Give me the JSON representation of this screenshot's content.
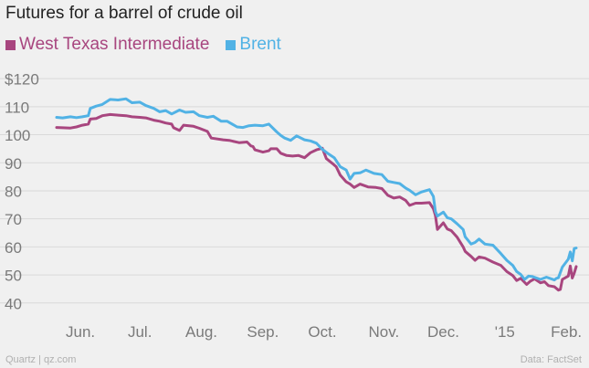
{
  "header": {
    "title": "Futures for a barrel of crude oil"
  },
  "footer": {
    "source_left": "Quartz | qz.com",
    "source_right": "Data: FactSet"
  },
  "chart_data": {
    "type": "line",
    "title": "Futures for a barrel of crude oil",
    "xlabel": "",
    "ylabel": "",
    "ylim": [
      37,
      122
    ],
    "y_ticks": [
      40,
      50,
      60,
      70,
      80,
      90,
      100,
      110,
      120
    ],
    "y_tick_labels": [
      "40",
      "50",
      "60",
      "70",
      "80",
      "90",
      "100",
      "110",
      "$120"
    ],
    "x_range": [
      "2014-05-20",
      "2015-02-06"
    ],
    "x_ticks": [
      {
        "date": "2014-06-01",
        "label": "Jun."
      },
      {
        "date": "2014-07-01",
        "label": "Jul."
      },
      {
        "date": "2014-08-01",
        "label": "Aug."
      },
      {
        "date": "2014-09-01",
        "label": "Sep."
      },
      {
        "date": "2014-10-01",
        "label": "Oct."
      },
      {
        "date": "2014-11-01",
        "label": "Nov."
      },
      {
        "date": "2014-12-01",
        "label": "Dec."
      },
      {
        "date": "2015-01-01",
        "label": "'15"
      },
      {
        "date": "2015-02-01",
        "label": "Feb."
      }
    ],
    "grid": true,
    "legend_position": "top-left",
    "series": [
      {
        "name": "West Texas Intermediate",
        "color": "#a8467f",
        "points": [
          [
            "2014-05-20",
            102.6
          ],
          [
            "2014-05-23",
            102.5
          ],
          [
            "2014-05-27",
            102.4
          ],
          [
            "2014-05-30",
            102.8
          ],
          [
            "2014-06-02",
            103.4
          ],
          [
            "2014-06-05",
            103.8
          ],
          [
            "2014-06-06",
            105.6
          ],
          [
            "2014-06-09",
            105.8
          ],
          [
            "2014-06-12",
            106.8
          ],
          [
            "2014-06-16",
            107.2
          ],
          [
            "2014-06-20",
            107.0
          ],
          [
            "2014-06-24",
            106.8
          ],
          [
            "2014-06-27",
            106.4
          ],
          [
            "2014-07-01",
            106.2
          ],
          [
            "2014-07-04",
            106.0
          ],
          [
            "2014-07-08",
            105.2
          ],
          [
            "2014-07-11",
            104.8
          ],
          [
            "2014-07-14",
            104.2
          ],
          [
            "2014-07-17",
            103.8
          ],
          [
            "2014-07-18",
            102.5
          ],
          [
            "2014-07-21",
            101.5
          ],
          [
            "2014-07-23",
            103.4
          ],
          [
            "2014-07-28",
            103.0
          ],
          [
            "2014-07-31",
            102.3
          ],
          [
            "2014-08-04",
            101.2
          ],
          [
            "2014-08-06",
            98.8
          ],
          [
            "2014-08-12",
            98.2
          ],
          [
            "2014-08-15",
            98.0
          ],
          [
            "2014-08-20",
            97.2
          ],
          [
            "2014-08-24",
            97.4
          ],
          [
            "2014-08-26",
            96.0
          ],
          [
            "2014-08-27",
            95.8
          ],
          [
            "2014-08-28",
            94.6
          ],
          [
            "2014-09-01",
            93.8
          ],
          [
            "2014-09-04",
            94.3
          ],
          [
            "2014-09-05",
            95.0
          ],
          [
            "2014-09-08",
            95.0
          ],
          [
            "2014-09-10",
            93.4
          ],
          [
            "2014-09-13",
            92.6
          ],
          [
            "2014-09-16",
            92.4
          ],
          [
            "2014-09-19",
            92.6
          ],
          [
            "2014-09-22",
            91.8
          ],
          [
            "2014-09-25",
            93.6
          ],
          [
            "2014-09-28",
            94.6
          ],
          [
            "2014-10-01",
            95.2
          ],
          [
            "2014-10-03",
            91.5
          ],
          [
            "2014-10-06",
            89.8
          ],
          [
            "2014-10-08",
            88.6
          ],
          [
            "2014-10-10",
            85.6
          ],
          [
            "2014-10-13",
            83.2
          ],
          [
            "2014-10-15",
            82.4
          ],
          [
            "2014-10-17",
            81.2
          ],
          [
            "2014-10-20",
            82.4
          ],
          [
            "2014-10-24",
            81.4
          ],
          [
            "2014-10-28",
            81.2
          ],
          [
            "2014-10-31",
            80.8
          ],
          [
            "2014-11-03",
            78.4
          ],
          [
            "2014-11-06",
            77.4
          ],
          [
            "2014-11-09",
            77.8
          ],
          [
            "2014-11-12",
            76.6
          ],
          [
            "2014-11-14",
            74.8
          ],
          [
            "2014-11-17",
            75.6
          ],
          [
            "2014-11-20",
            75.6
          ],
          [
            "2014-11-24",
            75.8
          ],
          [
            "2014-11-26",
            73.6
          ],
          [
            "2014-11-27",
            71.2
          ],
          [
            "2014-11-28",
            66.2
          ],
          [
            "2014-12-01",
            68.6
          ],
          [
            "2014-12-03",
            66.4
          ],
          [
            "2014-12-05",
            65.8
          ],
          [
            "2014-12-08",
            63.4
          ],
          [
            "2014-12-11",
            60.0
          ],
          [
            "2014-12-12",
            58.4
          ],
          [
            "2014-12-15",
            56.6
          ],
          [
            "2014-12-17",
            55.2
          ],
          [
            "2014-12-19",
            56.4
          ],
          [
            "2014-12-22",
            56.0
          ],
          [
            "2014-12-26",
            54.6
          ],
          [
            "2014-12-30",
            53.4
          ],
          [
            "2015-01-02",
            51.2
          ],
          [
            "2015-01-05",
            49.8
          ],
          [
            "2015-01-07",
            48.0
          ],
          [
            "2015-01-09",
            48.8
          ],
          [
            "2015-01-12",
            46.6
          ],
          [
            "2015-01-14",
            47.8
          ],
          [
            "2015-01-16",
            48.6
          ],
          [
            "2015-01-19",
            47.2
          ],
          [
            "2015-01-21",
            47.6
          ],
          [
            "2015-01-23",
            46.2
          ],
          [
            "2015-01-26",
            45.8
          ],
          [
            "2015-01-28",
            44.6
          ],
          [
            "2015-01-29",
            44.8
          ],
          [
            "2015-01-30",
            48.4
          ],
          [
            "2015-02-02",
            49.6
          ],
          [
            "2015-02-03",
            53.2
          ],
          [
            "2015-02-04",
            48.9
          ],
          [
            "2015-02-05",
            50.6
          ],
          [
            "2015-02-06",
            53.0
          ]
        ]
      },
      {
        "name": "Brent",
        "color": "#51b2e5",
        "points": [
          [
            "2014-05-20",
            106.2
          ],
          [
            "2014-05-23",
            106.0
          ],
          [
            "2014-05-27",
            106.4
          ],
          [
            "2014-05-30",
            106.1
          ],
          [
            "2014-06-02",
            106.4
          ],
          [
            "2014-06-05",
            106.8
          ],
          [
            "2014-06-06",
            109.4
          ],
          [
            "2014-06-09",
            110.2
          ],
          [
            "2014-06-12",
            110.8
          ],
          [
            "2014-06-16",
            112.6
          ],
          [
            "2014-06-20",
            112.4
          ],
          [
            "2014-06-24",
            112.8
          ],
          [
            "2014-06-27",
            111.4
          ],
          [
            "2014-07-01",
            111.6
          ],
          [
            "2014-07-04",
            110.4
          ],
          [
            "2014-07-08",
            109.4
          ],
          [
            "2014-07-11",
            108.2
          ],
          [
            "2014-07-14",
            108.6
          ],
          [
            "2014-07-17",
            107.4
          ],
          [
            "2014-07-21",
            108.8
          ],
          [
            "2014-07-24",
            108.0
          ],
          [
            "2014-07-28",
            108.2
          ],
          [
            "2014-07-31",
            106.8
          ],
          [
            "2014-08-04",
            106.2
          ],
          [
            "2014-08-07",
            106.6
          ],
          [
            "2014-08-11",
            104.8
          ],
          [
            "2014-08-14",
            104.8
          ],
          [
            "2014-08-19",
            102.8
          ],
          [
            "2014-08-22",
            102.6
          ],
          [
            "2014-08-25",
            103.2
          ],
          [
            "2014-08-28",
            103.4
          ],
          [
            "2014-09-01",
            103.2
          ],
          [
            "2014-09-04",
            103.8
          ],
          [
            "2014-09-08",
            101.0
          ],
          [
            "2014-09-10",
            99.8
          ],
          [
            "2014-09-12",
            98.8
          ],
          [
            "2014-09-15",
            98.0
          ],
          [
            "2014-09-18",
            99.6
          ],
          [
            "2014-09-22",
            98.2
          ],
          [
            "2014-09-25",
            97.8
          ],
          [
            "2014-09-28",
            97.0
          ],
          [
            "2014-10-01",
            94.8
          ],
          [
            "2014-10-04",
            93.2
          ],
          [
            "2014-10-07",
            91.8
          ],
          [
            "2014-10-10",
            88.6
          ],
          [
            "2014-10-13",
            87.4
          ],
          [
            "2014-10-15",
            84.2
          ],
          [
            "2014-10-17",
            86.2
          ],
          [
            "2014-10-20",
            86.4
          ],
          [
            "2014-10-23",
            87.4
          ],
          [
            "2014-10-27",
            86.2
          ],
          [
            "2014-10-31",
            85.8
          ],
          [
            "2014-11-03",
            83.4
          ],
          [
            "2014-11-06",
            83.0
          ],
          [
            "2014-11-09",
            82.6
          ],
          [
            "2014-11-12",
            81.0
          ],
          [
            "2014-11-14",
            80.2
          ],
          [
            "2014-11-17",
            78.6
          ],
          [
            "2014-11-20",
            79.6
          ],
          [
            "2014-11-24",
            80.4
          ],
          [
            "2014-11-26",
            78.0
          ],
          [
            "2014-11-27",
            72.6
          ],
          [
            "2014-11-28",
            71.0
          ],
          [
            "2014-12-01",
            72.4
          ],
          [
            "2014-12-03",
            70.4
          ],
          [
            "2014-12-05",
            70.0
          ],
          [
            "2014-12-08",
            68.2
          ],
          [
            "2014-12-11",
            66.2
          ],
          [
            "2014-12-12",
            63.6
          ],
          [
            "2014-12-15",
            61.0
          ],
          [
            "2014-12-17",
            61.6
          ],
          [
            "2014-12-19",
            62.8
          ],
          [
            "2014-12-22",
            61.0
          ],
          [
            "2014-12-26",
            60.6
          ],
          [
            "2014-12-30",
            57.6
          ],
          [
            "2015-01-02",
            55.2
          ],
          [
            "2015-01-05",
            53.4
          ],
          [
            "2015-01-07",
            51.2
          ],
          [
            "2015-01-09",
            50.2
          ],
          [
            "2015-01-11",
            48.4
          ],
          [
            "2015-01-13",
            49.6
          ],
          [
            "2015-01-15",
            49.4
          ],
          [
            "2015-01-19",
            48.4
          ],
          [
            "2015-01-22",
            49.2
          ],
          [
            "2015-01-26",
            48.2
          ],
          [
            "2015-01-27",
            48.8
          ],
          [
            "2015-01-28",
            49.0
          ],
          [
            "2015-01-30",
            52.8
          ],
          [
            "2015-02-02",
            55.6
          ],
          [
            "2015-02-03",
            58.2
          ],
          [
            "2015-02-04",
            55.0
          ],
          [
            "2015-02-05",
            59.4
          ],
          [
            "2015-02-06",
            59.6
          ]
        ]
      }
    ]
  }
}
